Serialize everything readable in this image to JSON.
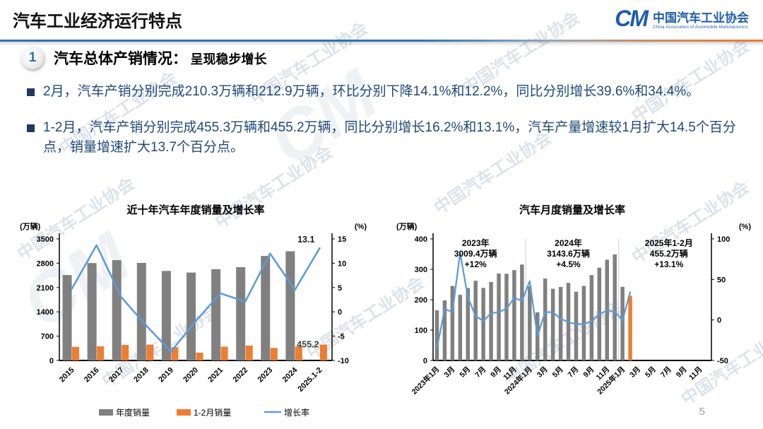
{
  "page": {
    "title": "汽车工业经济运行特点",
    "page_number": "5"
  },
  "logo": {
    "glyph": "CM",
    "name_cn": "中国汽车工业协会",
    "name_en": "China Association of Automobile Manufacturers"
  },
  "section": {
    "number": "1",
    "heading": "汽车总体产销情况：",
    "subheading": "呈现稳步增长"
  },
  "bullets": [
    "2月，汽车产销分别完成210.3万辆和212.9万辆，环比分别下降14.1%和12.2%，同比分别增长39.6%和34.4%。",
    "1-2月，汽车产销分别完成455.3万辆和455.2万辆，同比分别增长16.2%和13.1%，汽车产量增速较1月扩大14.5个百分点，销量增速扩大13.7个百分点。"
  ],
  "watermark": {
    "text": "中国汽车工业协会",
    "glyph": "CM"
  },
  "colors": {
    "bar_gray": "#808080",
    "bar_orange": "#ED7D31",
    "line_blue": "#5B9BD5",
    "text_blue": "#1F4977",
    "bullet_square": "#1F3864",
    "accent_blue": "#2E74B5",
    "logo_blue": "#1F5CA9"
  },
  "chart_data": [
    {
      "type": "bar+line",
      "title": "近十年汽车年度销量及增长率",
      "left_axis_label": "(万辆)",
      "right_axis_label": "(%)",
      "categories": [
        "2015",
        "2016",
        "2017",
        "2018",
        "2019",
        "2020",
        "2021",
        "2022",
        "2023",
        "2024",
        "2025.1-2"
      ],
      "series": [
        {
          "name": "年度销量",
          "type": "bar",
          "color": "#808080",
          "axis": "left",
          "values": [
            2459.8,
            2802.8,
            2887.9,
            2808.1,
            2576.9,
            2531.1,
            2627.5,
            2686.4,
            3009.4,
            3143.6,
            null
          ]
        },
        {
          "name": "1-2月销量",
          "type": "bar",
          "color": "#ED7D31",
          "axis": "left",
          "values": [
            391.2,
            407.9,
            445.9,
            452.7,
            385.2,
            223.8,
            395.8,
            426.8,
            362.5,
            402.6,
            455.2
          ]
        },
        {
          "name": "增长率",
          "type": "line",
          "color": "#5B9BD5",
          "axis": "right",
          "values": [
            4.7,
            13.7,
            3.0,
            -2.8,
            -8.2,
            -1.9,
            3.8,
            2.1,
            12.0,
            4.5,
            13.1
          ]
        }
      ],
      "left_ylim": [
        0,
        3500
      ],
      "left_ticks": [
        0,
        700,
        1400,
        2100,
        2800,
        3500
      ],
      "right_ylim": [
        -10,
        15
      ],
      "right_ticks": [
        -10,
        -5,
        0,
        5,
        10,
        15
      ],
      "data_labels": [
        {
          "target": "line-end",
          "text": "13.1"
        },
        {
          "target": "bar-end",
          "text": "455.2"
        }
      ],
      "legend": {
        "position": "bottom",
        "items": [
          "年度销量",
          "1-2月销量",
          "增长率"
        ]
      },
      "grid": false
    },
    {
      "type": "bar+line",
      "title": "汽车月度销量及增长率",
      "left_axis_label": "(万辆)",
      "right_axis_label": "(%)",
      "x_slots": 36,
      "months": [
        "2023年1月",
        "2023年2月",
        "2023年3月",
        "2023年4月",
        "2023年5月",
        "2023年6月",
        "2023年7月",
        "2023年8月",
        "2023年9月",
        "2023年10月",
        "2023年11月",
        "2023年12月",
        "2024年1月",
        "2024年2月",
        "2024年3月",
        "2024年4月",
        "2024年5月",
        "2024年6月",
        "2024年7月",
        "2024年8月",
        "2024年9月",
        "2024年10月",
        "2024年11月",
        "2024年12月",
        "2025年1月",
        "2025年2月"
      ],
      "x_tick_labels": [
        "2023年1月",
        "3月",
        "5月",
        "7月",
        "9月",
        "11月",
        "2024年1月",
        "3月",
        "5月",
        "7月",
        "9月",
        "11月",
        "2025年1月",
        "3月",
        "5月",
        "7月",
        "9月",
        "11月"
      ],
      "series": [
        {
          "name": "月度销量",
          "type": "bar",
          "color": "#808080",
          "last_bar_color": "#ED7D31",
          "axis": "left",
          "values": [
            164.9,
            197.6,
            245.1,
            215.9,
            238.2,
            262.2,
            238.7,
            258.2,
            285.8,
            285.3,
            297.0,
            315.6,
            243.9,
            158.4,
            269.4,
            235.9,
            241.7,
            255.2,
            226.2,
            245.3,
            280.9,
            305.3,
            331.6,
            348.9,
            242.3,
            212.9
          ]
        },
        {
          "name": "增长率",
          "type": "line",
          "color": "#5B9BD5",
          "axis": "right",
          "values": [
            -35.0,
            13.5,
            9.7,
            82.7,
            27.9,
            4.8,
            -1.4,
            8.4,
            9.5,
            13.8,
            27.4,
            23.5,
            47.9,
            -19.9,
            9.9,
            9.3,
            1.5,
            -2.7,
            -5.2,
            -5.0,
            -1.7,
            7.0,
            11.7,
            10.5,
            -0.6,
            34.4
          ]
        }
      ],
      "left_ylim": [
        0,
        400
      ],
      "left_ticks": [
        0,
        100,
        200,
        300,
        400
      ],
      "right_ylim": [
        -50,
        100
      ],
      "right_ticks": [
        -50,
        0,
        50,
        100
      ],
      "year_separators": [
        12,
        24
      ],
      "annotations": [
        {
          "x_slot": 5,
          "lines": [
            "2023年",
            "3009.4万辆",
            "+12%"
          ]
        },
        {
          "x_slot": 17,
          "lines": [
            "2024年",
            "3143.6万辆",
            "+4.5%"
          ]
        },
        {
          "x_slot": 30,
          "lines": [
            "2025年1-2月",
            "455.2万辆",
            "+13.1%"
          ]
        }
      ],
      "grid": false
    }
  ]
}
